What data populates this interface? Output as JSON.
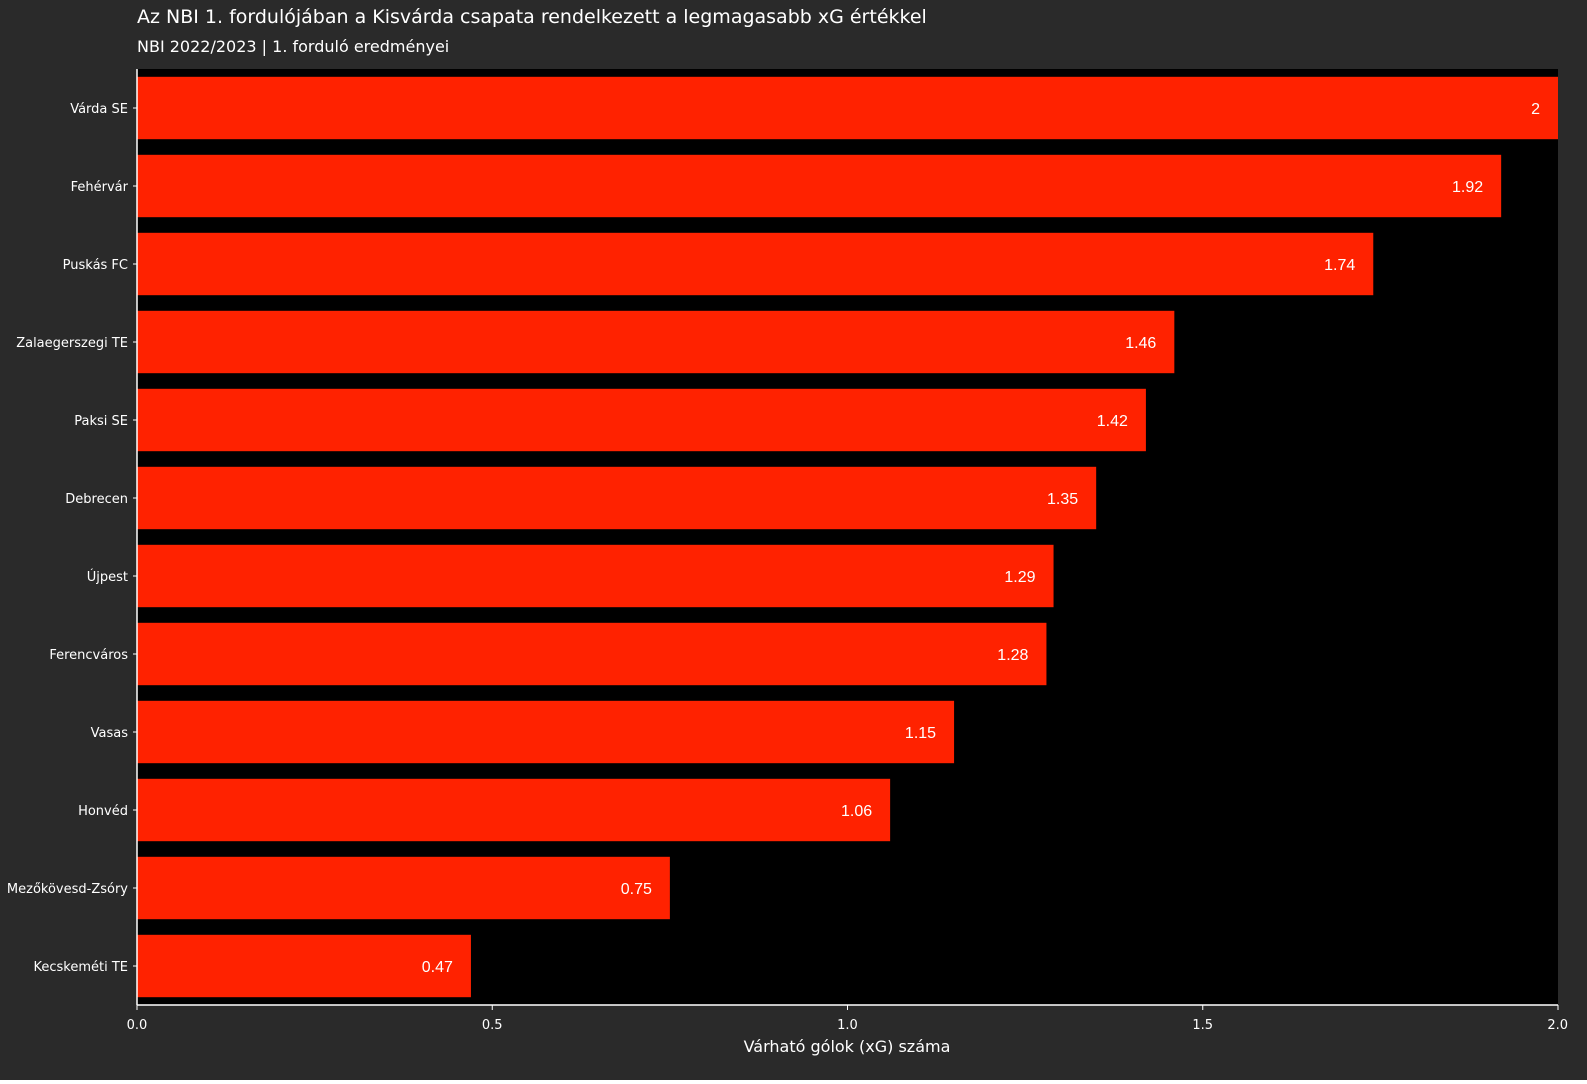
{
  "chart_data": {
    "type": "bar",
    "orientation": "horizontal",
    "title": "Az NBI 1. fordulójában a Kisvárda csapata rendelkezett a legmagasabb xG értékkel",
    "subtitle": "NBI 2022/2023 | 1. forduló eredményei",
    "xlabel": "Várható gólok (xG) száma",
    "ylabel": "",
    "xlim": [
      0,
      2
    ],
    "xticks": [
      "0.0",
      "0.5",
      "1.0",
      "1.5",
      "2.0"
    ],
    "categories": [
      "Várda SE",
      "Fehérvár",
      "Puskás FC",
      "Zalaegerszegi TE",
      "Paksi SE",
      "Debrecen",
      "Újpest",
      "Ferencváros",
      "Vasas",
      "Honvéd",
      "Mezőkövesd-Zsóry",
      "Kecskeméti TE"
    ],
    "values": [
      2,
      1.92,
      1.74,
      1.46,
      1.42,
      1.35,
      1.29,
      1.28,
      1.15,
      1.06,
      0.75,
      0.47
    ],
    "value_labels": [
      "2",
      "1.92",
      "1.74",
      "1.46",
      "1.42",
      "1.35",
      "1.29",
      "1.28",
      "1.15",
      "1.06",
      "0.75",
      "0.47"
    ],
    "grid": false,
    "legend": "none",
    "colors": {
      "bar": "#ff2200",
      "panel": "#000000",
      "background": "#2a2a2a",
      "text": "#ffffff",
      "axis": "#ffffff"
    }
  }
}
